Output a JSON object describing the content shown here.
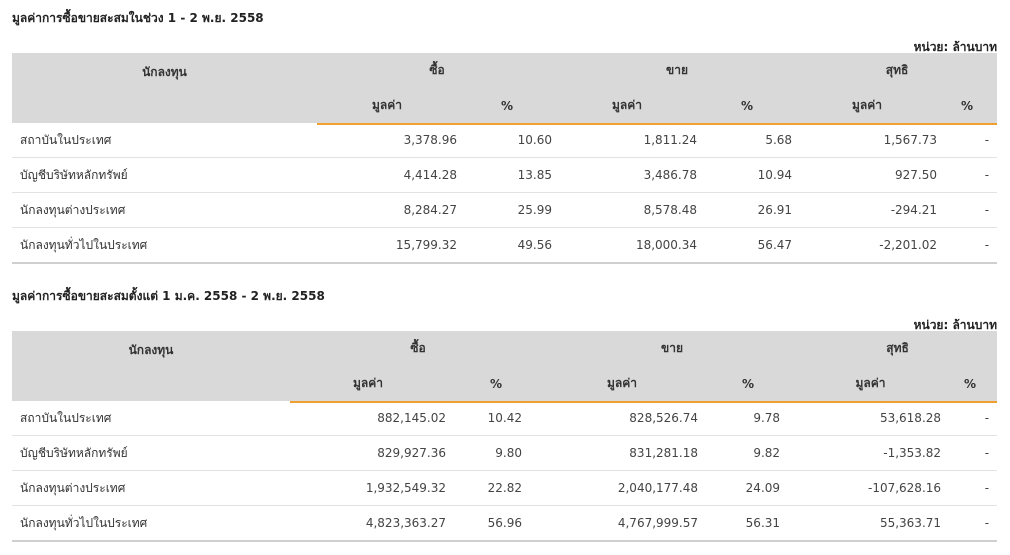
{
  "tables": [
    {
      "title": "มูลค่าการซื้อขายสะสมในช่วง 1 - 2 พ.ย. 2558",
      "unit": "หน่วย: ล้านบาท",
      "headers": {
        "investor": "นักลงทุน",
        "buy": "ซื้อ",
        "sell": "ขาย",
        "net": "สุทธิ",
        "value": "มูลค่า",
        "percent": "%"
      },
      "rows": [
        {
          "name": "สถาบันในประเทศ",
          "buy_value": "3,378.96",
          "buy_pct": "10.60",
          "sell_value": "1,811.24",
          "sell_pct": "5.68",
          "net_value": "1,567.73",
          "net_sign": "pos",
          "net_pct": "-"
        },
        {
          "name": "บัญชีบริษัทหลักทรัพย์",
          "buy_value": "4,414.28",
          "buy_pct": "13.85",
          "sell_value": "3,486.78",
          "sell_pct": "10.94",
          "net_value": "927.50",
          "net_sign": "pos",
          "net_pct": "-"
        },
        {
          "name": "นักลงทุนต่างประเทศ",
          "buy_value": "8,284.27",
          "buy_pct": "25.99",
          "sell_value": "8,578.48",
          "sell_pct": "26.91",
          "net_value": "-294.21",
          "net_sign": "neg",
          "net_pct": "-"
        },
        {
          "name": "นักลงทุนทั่วไปในประเทศ",
          "buy_value": "15,799.32",
          "buy_pct": "49.56",
          "sell_value": "18,000.34",
          "sell_pct": "56.47",
          "net_value": "-2,201.02",
          "net_sign": "neg",
          "net_pct": "-"
        }
      ]
    },
    {
      "title": "มูลค่าการซื้อขายสะสมตั้งแต่ 1 ม.ค. 2558 - 2 พ.ย. 2558",
      "unit": "หน่วย: ล้านบาท",
      "headers": {
        "investor": "นักลงทุน",
        "buy": "ซื้อ",
        "sell": "ขาย",
        "net": "สุทธิ",
        "value": "มูลค่า",
        "percent": "%"
      },
      "rows": [
        {
          "name": "สถาบันในประเทศ",
          "buy_value": "882,145.02",
          "buy_pct": "10.42",
          "sell_value": "828,526.74",
          "sell_pct": "9.78",
          "net_value": "53,618.28",
          "net_sign": "pos",
          "net_pct": "-"
        },
        {
          "name": "บัญชีบริษัทหลักทรัพย์",
          "buy_value": "829,927.36",
          "buy_pct": "9.80",
          "sell_value": "831,281.18",
          "sell_pct": "9.82",
          "net_value": "-1,353.82",
          "net_sign": "neg",
          "net_pct": "-"
        },
        {
          "name": "นักลงทุนต่างประเทศ",
          "buy_value": "1,932,549.32",
          "buy_pct": "22.82",
          "sell_value": "2,040,177.48",
          "sell_pct": "24.09",
          "net_value": "-107,628.16",
          "net_sign": "neg",
          "net_pct": "-"
        },
        {
          "name": "นักลงทุนทั่วไปในประเทศ",
          "buy_value": "4,823,363.27",
          "buy_pct": "56.96",
          "sell_value": "4,767,999.57",
          "sell_pct": "56.31",
          "net_value": "55,363.71",
          "net_sign": "pos",
          "net_pct": "-"
        }
      ]
    }
  ],
  "colors": {
    "positive": "#2e8b2e",
    "negative": "#e02020",
    "accent": "#f0a030",
    "header_bg": "#d9d9d9"
  }
}
